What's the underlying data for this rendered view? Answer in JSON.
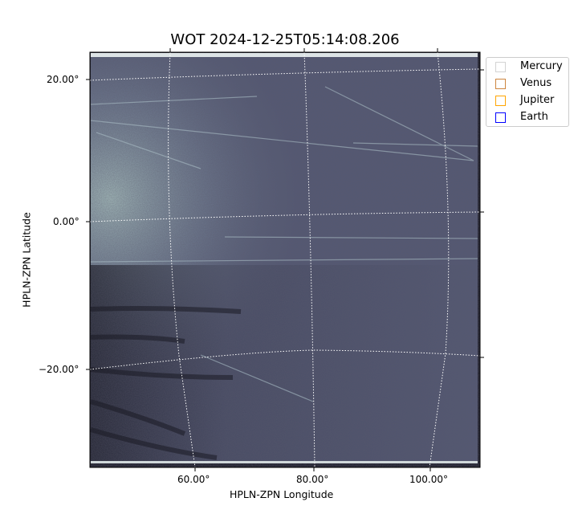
{
  "chart_data": {
    "type": "heatmap",
    "title": "WOT 2024-12-25T05:14:08.206",
    "xlabel": "HPLN-ZPN Longitude",
    "ylabel": "HPLN-ZPN Latitude",
    "x_ticks": [
      "60.00°",
      "80.00°",
      "100.00°"
    ],
    "y_ticks": [
      "20.00°",
      "0.00°",
      "−20.00°"
    ],
    "grid": "dotted white coordinate grid",
    "colormap": "bone",
    "legend": {
      "placement": "outside top-right",
      "entries": [
        {
          "name": "Mercury",
          "color": "#d3d3d3"
        },
        {
          "name": "Venus",
          "color": "#cd853f"
        },
        {
          "name": "Jupiter",
          "color": "#ffa500"
        },
        {
          "name": "Earth",
          "color": "#0000ff"
        }
      ]
    }
  }
}
